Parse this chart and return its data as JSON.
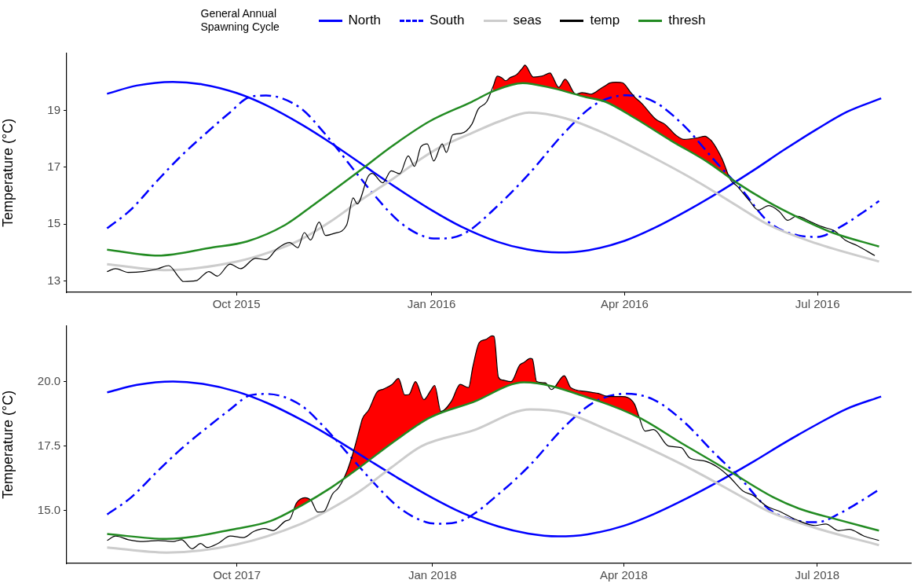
{
  "chart_data": [
    {
      "type": "line",
      "ylabel": "Temperature (°C)",
      "legend_title": "General Annual Spawning Cycle",
      "legend": "top",
      "xlim": [
        "2015-07-13",
        "2016-08-14"
      ],
      "xticks": [
        {
          "value": "2015-10-01",
          "label": "Oct 2015"
        },
        {
          "value": "2016-01-01",
          "label": "Jan 2016"
        },
        {
          "value": "2016-04-01",
          "label": "Apr 2016"
        },
        {
          "value": "2016-07-01",
          "label": "Jul 2016"
        }
      ],
      "ylim": [
        12.6,
        21.0
      ],
      "yticks": [
        13,
        15,
        17,
        19
      ],
      "series": [
        {
          "type": "area",
          "color": "#ff0000",
          "x": [
            "2016-01-30",
            "2016-02-01",
            "2016-02-03",
            "2016-02-05",
            "2016-02-07",
            "2016-02-10",
            "2016-02-13",
            "2016-02-14",
            "2016-02-18",
            "2016-02-22",
            "2016-02-26",
            "2016-02-27",
            "2016-03-01",
            "2016-03-04",
            "2016-03-09",
            "2016-03-12",
            "2016-03-14",
            "2016-03-16",
            "2016-03-21",
            "2016-03-23",
            "2016-03-25",
            "2016-03-28",
            "2016-03-31",
            "2016-04-04",
            "2016-04-06",
            "2016-04-09",
            "2016-04-16",
            "2016-04-20",
            "2016-04-23",
            "2016-04-25",
            "2016-04-29",
            "2016-05-05",
            "2016-05-09",
            "2016-05-10",
            "2016-05-12",
            "2016-05-17",
            "2016-05-21",
            "2016-05-24"
          ],
          "values": [
            19.83,
            20.2,
            20.15,
            20.04,
            20.15,
            20.25,
            20.5,
            20.59,
            20.17,
            20.2,
            20.31,
            20.2,
            19.81,
            20.09,
            19.57,
            19.62,
            19.6,
            19.57,
            19.78,
            19.87,
            19.96,
            19.99,
            19.97,
            19.62,
            19.45,
            19.25,
            18.67,
            18.51,
            18.29,
            18.14,
            17.98,
            18.03,
            18.09,
            18.05,
            17.93,
            17.29,
            16.55,
            16.34
          ]
        },
        {
          "name": "North",
          "color": "#0000ff",
          "line_style": "solid",
          "x": [
            "2015-08-01",
            "2015-08-15",
            "2015-09-01",
            "2015-09-15",
            "2015-10-01",
            "2015-10-15",
            "2015-11-01",
            "2015-11-15",
            "2015-12-01",
            "2015-12-15",
            "2016-01-01",
            "2016-01-15",
            "2016-02-01",
            "2016-02-15",
            "2016-03-01",
            "2016-03-15",
            "2016-04-01",
            "2016-04-15",
            "2016-05-01",
            "2016-05-15",
            "2016-06-01",
            "2016-06-15",
            "2016-07-01",
            "2016-07-15",
            "2016-07-31"
          ],
          "values": [
            19.58,
            19.87,
            20.0,
            19.91,
            19.61,
            19.18,
            18.49,
            17.83,
            17.01,
            16.3,
            15.49,
            14.91,
            14.38,
            14.11,
            14.0,
            14.08,
            14.41,
            14.86,
            15.49,
            16.1,
            16.9,
            17.6,
            18.35,
            18.95,
            19.42
          ]
        },
        {
          "name": "South",
          "color": "#0000ff",
          "line_style": "dashed",
          "x": [
            "2015-08-01",
            "2015-08-12",
            "2015-08-25",
            "2015-09-05",
            "2015-09-19",
            "2015-09-28",
            "2015-10-07",
            "2015-10-15",
            "2015-10-31",
            "2015-11-11",
            "2015-11-28",
            "2015-12-05",
            "2015-12-17",
            "2015-12-29",
            "2016-01-05",
            "2016-01-16",
            "2016-02-02",
            "2016-02-16",
            "2016-03-04",
            "2016-03-18",
            "2016-04-02",
            "2016-04-15",
            "2016-04-29",
            "2016-05-14",
            "2016-05-26",
            "2016-06-08",
            "2016-06-22",
            "2016-07-01",
            "2016-07-12",
            "2016-07-21",
            "2016-07-30"
          ],
          "values": [
            14.85,
            15.49,
            16.55,
            17.4,
            18.35,
            18.93,
            19.46,
            19.52,
            19.09,
            18.24,
            16.66,
            16.02,
            15.07,
            14.55,
            14.49,
            14.65,
            15.7,
            16.77,
            18.24,
            19.2,
            19.53,
            19.3,
            18.46,
            17.19,
            16.23,
            15.07,
            14.6,
            14.55,
            14.91,
            15.34,
            15.81
          ]
        },
        {
          "name": "seas",
          "color": "#cccccc",
          "line_style": "solid",
          "x": [
            "2015-08-01",
            "2015-08-29",
            "2015-10-01",
            "2015-10-17",
            "2015-10-31",
            "2015-11-14",
            "2015-11-28",
            "2015-12-13",
            "2015-12-27",
            "2016-01-05",
            "2016-01-20",
            "2016-02-02",
            "2016-02-16",
            "2016-03-04",
            "2016-03-24",
            "2016-04-13",
            "2016-05-04",
            "2016-05-25",
            "2016-06-08",
            "2016-06-30",
            "2016-07-30"
          ],
          "values": [
            13.59,
            13.38,
            13.68,
            14.02,
            14.44,
            15.07,
            15.81,
            16.55,
            17.29,
            17.7,
            18.2,
            18.61,
            18.92,
            18.72,
            18.14,
            17.4,
            16.55,
            15.6,
            14.97,
            14.33,
            13.68
          ]
        },
        {
          "name": "temp",
          "color": "#000000",
          "line_style": "solid",
          "x": [
            "2015-08-01",
            "2015-08-05",
            "2015-08-11",
            "2015-08-18",
            "2015-08-25",
            "2015-08-30",
            "2015-09-04",
            "2015-09-06",
            "2015-09-12",
            "2015-09-18",
            "2015-09-22",
            "2015-09-28",
            "2015-10-03",
            "2015-10-10",
            "2015-10-15",
            "2015-10-20",
            "2015-10-26",
            "2015-10-30",
            "2015-11-02",
            "2015-11-05",
            "2015-11-09",
            "2015-11-12",
            "2015-11-16",
            "2015-11-22",
            "2015-11-25",
            "2015-11-27",
            "2015-12-02",
            "2015-12-04",
            "2015-12-09",
            "2015-12-13",
            "2015-12-17",
            "2015-12-21",
            "2015-12-24",
            "2015-12-27",
            "2015-12-30",
            "2016-01-02",
            "2016-01-06",
            "2016-01-08",
            "2016-01-11",
            "2016-01-15",
            "2016-01-20",
            "2016-01-23",
            "2016-01-27",
            "2016-01-30",
            "2016-02-01",
            "2016-02-03",
            "2016-02-05",
            "2016-02-07",
            "2016-02-10",
            "2016-02-13",
            "2016-02-14",
            "2016-02-18",
            "2016-02-22",
            "2016-02-26",
            "2016-02-27",
            "2016-03-01",
            "2016-03-04",
            "2016-03-09",
            "2016-03-12",
            "2016-03-14",
            "2016-03-16",
            "2016-03-21",
            "2016-03-23",
            "2016-03-25",
            "2016-03-28",
            "2016-03-31",
            "2016-04-04",
            "2016-04-06",
            "2016-04-09",
            "2016-04-16",
            "2016-04-20",
            "2016-04-23",
            "2016-04-25",
            "2016-04-29",
            "2016-05-05",
            "2016-05-09",
            "2016-05-10",
            "2016-05-12",
            "2016-05-17",
            "2016-05-21",
            "2016-05-24",
            "2016-05-30",
            "2016-06-03",
            "2016-06-08",
            "2016-06-13",
            "2016-06-17",
            "2016-06-21",
            "2016-06-28",
            "2016-07-03",
            "2016-07-09",
            "2016-07-14",
            "2016-07-20",
            "2016-07-28"
          ],
          "values": [
            13.33,
            13.43,
            13.3,
            13.33,
            13.43,
            13.54,
            13.12,
            12.98,
            13.01,
            13.33,
            13.17,
            13.59,
            13.43,
            13.8,
            13.75,
            14.12,
            14.35,
            14.17,
            14.7,
            14.44,
            15.07,
            14.6,
            14.67,
            14.97,
            15.92,
            15.71,
            16.66,
            16.78,
            16.45,
            16.87,
            16.77,
            17.4,
            17.03,
            17.72,
            17.82,
            17.22,
            17.82,
            17.52,
            18.14,
            18.19,
            18.51,
            19.04,
            19.3,
            19.83,
            20.2,
            20.15,
            20.04,
            20.15,
            20.25,
            20.5,
            20.59,
            20.17,
            20.2,
            20.31,
            20.2,
            19.81,
            20.09,
            19.57,
            19.62,
            19.6,
            19.57,
            19.78,
            19.87,
            19.96,
            19.99,
            19.97,
            19.62,
            19.45,
            19.25,
            18.67,
            18.51,
            18.29,
            18.14,
            17.98,
            18.03,
            18.09,
            18.05,
            17.93,
            17.29,
            16.55,
            16.34,
            15.81,
            15.49,
            15.65,
            15.44,
            15.13,
            15.28,
            15.07,
            14.91,
            14.76,
            14.44,
            14.23,
            13.89
          ]
        },
        {
          "name": "thresh",
          "color": "#228b22",
          "line_style": "solid",
          "x": [
            "2015-08-01",
            "2015-08-25",
            "2015-09-19",
            "2015-10-06",
            "2015-10-24",
            "2015-11-07",
            "2015-11-28",
            "2015-12-13",
            "2015-12-31",
            "2016-01-20",
            "2016-01-30",
            "2016-02-13",
            "2016-02-27",
            "2016-03-14",
            "2016-03-23",
            "2016-04-06",
            "2016-04-23",
            "2016-05-10",
            "2016-05-24",
            "2016-06-07",
            "2016-06-22",
            "2016-07-08",
            "2016-07-30"
          ],
          "values": [
            14.1,
            13.89,
            14.17,
            14.39,
            14.97,
            15.71,
            16.87,
            17.72,
            18.61,
            19.3,
            19.67,
            19.96,
            19.78,
            19.46,
            19.3,
            18.72,
            17.93,
            17.19,
            16.45,
            15.81,
            15.23,
            14.7,
            14.21
          ]
        }
      ]
    },
    {
      "type": "line",
      "ylabel": "Temperature (°C)",
      "xlim": [
        "2017-07-13",
        "2018-08-14"
      ],
      "xticks": [
        {
          "value": "2017-10-01",
          "label": "Oct 2017"
        },
        {
          "value": "2018-01-01",
          "label": "Jan 2018"
        },
        {
          "value": "2018-04-01",
          "label": "Apr 2018"
        },
        {
          "value": "2018-07-01",
          "label": "Jul 2018"
        }
      ],
      "ylim": [
        12.95,
        22.15
      ],
      "yticks": [
        {
          "value": 15,
          "label": "15.0"
        },
        {
          "value": 17.5,
          "label": "17.5"
        },
        {
          "value": 20,
          "label": "20.0"
        }
      ],
      "series": [
        {
          "type": "area",
          "color": "#ff0000",
          "x": [
            "2017-10-17",
            "2017-10-18",
            "2017-10-24",
            "2017-10-26",
            "2017-10-29",
            "2017-10-31",
            "2017-11-02",
            "2017-11-05",
            "2017-11-08",
            "2017-11-11",
            "2017-11-14",
            "2017-11-15",
            "2017-11-18",
            "2017-11-22",
            "2017-11-25",
            "2017-11-28",
            "2017-11-29",
            "2017-12-02",
            "2017-12-06",
            "2017-12-09",
            "2017-12-13",
            "2017-12-16",
            "2017-12-19",
            "2017-12-21",
            "2017-12-24",
            "2017-12-28",
            "2017-12-31",
            "2018-01-02",
            "2018-01-05",
            "2018-01-10",
            "2018-01-14",
            "2018-01-18",
            "2018-01-20",
            "2018-01-23",
            "2018-01-26",
            "2018-01-29",
            "2018-01-30",
            "2018-02-01",
            "2018-02-03",
            "2018-02-07",
            "2018-02-11",
            "2018-02-13",
            "2018-02-16",
            "2018-02-17",
            "2018-02-19",
            "2018-02-23",
            "2018-02-26",
            "2018-03-04",
            "2018-03-07",
            "2018-03-14",
            "2018-03-17",
            "2018-03-20",
            "2018-03-25",
            "2018-03-31",
            "2018-04-06",
            "2018-04-08"
          ],
          "values": [
            14.24,
            14.22,
            14.6,
            14.67,
            15.29,
            15.45,
            15.5,
            15.38,
            14.94,
            14.97,
            15.47,
            15.64,
            15.9,
            16.57,
            17.33,
            18.25,
            18.55,
            18.9,
            19.6,
            19.71,
            19.89,
            20.12,
            19.48,
            19.5,
            20.0,
            19.3,
            19.63,
            19.85,
            18.84,
            19.25,
            19.89,
            19.77,
            20.58,
            21.51,
            21.63,
            21.77,
            21.75,
            20.18,
            20.06,
            20.0,
            20.64,
            20.74,
            20.9,
            20.88,
            20.0,
            19.95,
            19.69,
            20.23,
            19.77,
            19.62,
            19.58,
            19.54,
            19.42,
            19.42,
            19.13,
            18.67
          ]
        },
        {
          "color": "#0000ff",
          "line_style": "solid",
          "x": [
            "2017-08-01",
            "2017-08-15",
            "2017-09-01",
            "2017-09-15",
            "2017-10-01",
            "2017-10-15",
            "2017-11-01",
            "2017-11-15",
            "2017-12-01",
            "2017-12-15",
            "2018-01-01",
            "2018-01-15",
            "2018-02-01",
            "2018-02-15",
            "2018-03-01",
            "2018-03-15",
            "2018-04-01",
            "2018-04-15",
            "2018-05-01",
            "2018-05-15",
            "2018-06-01",
            "2018-06-15",
            "2018-07-01",
            "2018-07-15",
            "2018-07-31"
          ],
          "values": [
            19.58,
            19.87,
            20.0,
            19.91,
            19.61,
            19.18,
            18.49,
            17.83,
            17.01,
            16.3,
            15.49,
            14.91,
            14.38,
            14.11,
            14.0,
            14.08,
            14.41,
            14.86,
            15.49,
            16.1,
            16.9,
            17.6,
            18.35,
            18.95,
            19.42
          ]
        },
        {
          "color": "#0000ff",
          "line_style": "dashed",
          "x": [
            "2017-08-01",
            "2017-08-12",
            "2017-08-25",
            "2017-09-05",
            "2017-09-19",
            "2017-09-28",
            "2017-10-07",
            "2017-10-15",
            "2017-10-31",
            "2017-11-11",
            "2017-11-28",
            "2017-12-05",
            "2017-12-17",
            "2017-12-29",
            "2018-01-05",
            "2018-01-16",
            "2018-02-02",
            "2018-02-16",
            "2018-03-04",
            "2018-03-18",
            "2018-04-02",
            "2018-04-15",
            "2018-04-29",
            "2018-05-14",
            "2018-05-26",
            "2018-06-08",
            "2018-06-22",
            "2018-07-01",
            "2018-07-12",
            "2018-07-21",
            "2018-07-30"
          ],
          "values": [
            14.85,
            15.49,
            16.55,
            17.4,
            18.35,
            18.93,
            19.46,
            19.52,
            19.09,
            18.24,
            16.66,
            16.02,
            15.07,
            14.55,
            14.49,
            14.65,
            15.7,
            16.77,
            18.24,
            19.2,
            19.53,
            19.3,
            18.46,
            17.19,
            16.23,
            15.07,
            14.6,
            14.55,
            14.91,
            15.34,
            15.81
          ]
        },
        {
          "color": "#cccccc",
          "line_style": "solid",
          "x": [
            "2017-08-01",
            "2017-08-29",
            "2017-10-01",
            "2017-10-31",
            "2017-11-14",
            "2017-11-28",
            "2017-12-13",
            "2017-12-27",
            "2018-01-20",
            "2018-02-16",
            "2018-03-04",
            "2018-03-24",
            "2018-04-13",
            "2018-05-04",
            "2018-05-25",
            "2018-06-08",
            "2018-06-30",
            "2018-07-30"
          ],
          "values": [
            13.57,
            13.37,
            13.69,
            14.48,
            15.06,
            15.76,
            16.69,
            17.5,
            18.1,
            18.92,
            18.8,
            18.14,
            17.4,
            16.55,
            15.6,
            14.97,
            14.33,
            13.66
          ]
        },
        {
          "color": "#000000",
          "line_style": "solid",
          "x": [
            "2017-08-01",
            "2017-08-05",
            "2017-08-11",
            "2017-08-18",
            "2017-08-25",
            "2017-09-01",
            "2017-09-05",
            "2017-09-10",
            "2017-09-14",
            "2017-09-17",
            "2017-09-22",
            "2017-09-28",
            "2017-10-04",
            "2017-10-09",
            "2017-10-14",
            "2017-10-17",
            "2017-10-18",
            "2017-10-24",
            "2017-10-26",
            "2017-10-29",
            "2017-10-31",
            "2017-11-02",
            "2017-11-05",
            "2017-11-08",
            "2017-11-11",
            "2017-11-14",
            "2017-11-15",
            "2017-11-18",
            "2017-11-22",
            "2017-11-25",
            "2017-11-28",
            "2017-11-29",
            "2017-12-02",
            "2017-12-06",
            "2017-12-09",
            "2017-12-13",
            "2017-12-16",
            "2017-12-19",
            "2017-12-21",
            "2017-12-24",
            "2017-12-28",
            "2017-12-31",
            "2018-01-02",
            "2018-01-05",
            "2018-01-10",
            "2018-01-14",
            "2018-01-18",
            "2018-01-20",
            "2018-01-23",
            "2018-01-26",
            "2018-01-29",
            "2018-01-30",
            "2018-02-01",
            "2018-02-03",
            "2018-02-07",
            "2018-02-11",
            "2018-02-13",
            "2018-02-16",
            "2018-02-17",
            "2018-02-19",
            "2018-02-23",
            "2018-02-26",
            "2018-03-04",
            "2018-03-07",
            "2018-03-14",
            "2018-03-17",
            "2018-03-20",
            "2018-03-25",
            "2018-03-31",
            "2018-04-06",
            "2018-04-08",
            "2018-04-11",
            "2018-04-15",
            "2018-04-22",
            "2018-04-28",
            "2018-05-02",
            "2018-05-09",
            "2018-05-15",
            "2018-05-21",
            "2018-05-27",
            "2018-06-01",
            "2018-06-07",
            "2018-06-14",
            "2018-06-21",
            "2018-06-30",
            "2018-07-05",
            "2018-07-11",
            "2018-07-16",
            "2018-07-23",
            "2018-07-30"
          ],
          "values": [
            13.84,
            14.01,
            13.87,
            13.8,
            13.84,
            13.8,
            13.87,
            13.52,
            13.72,
            13.57,
            13.72,
            14.01,
            13.95,
            14.19,
            14.3,
            14.24,
            14.22,
            14.6,
            14.67,
            15.29,
            15.45,
            15.5,
            15.38,
            14.94,
            14.97,
            15.47,
            15.64,
            15.9,
            16.57,
            17.33,
            18.25,
            18.55,
            18.9,
            19.6,
            19.71,
            19.89,
            20.12,
            19.48,
            19.5,
            20.0,
            19.3,
            19.63,
            19.85,
            18.84,
            19.25,
            19.89,
            19.77,
            20.58,
            21.51,
            21.63,
            21.77,
            21.75,
            20.18,
            20.06,
            20.0,
            20.64,
            20.74,
            20.9,
            20.88,
            20.0,
            19.95,
            19.69,
            20.23,
            19.77,
            19.62,
            19.58,
            19.54,
            19.42,
            19.42,
            19.13,
            18.67,
            18.08,
            18.14,
            17.5,
            17.44,
            17.04,
            16.92,
            16.69,
            16.28,
            15.76,
            15.58,
            15.18,
            14.94,
            14.65,
            14.42,
            14.48,
            14.22,
            14.27,
            14.01,
            13.84
          ]
        },
        {
          "color": "#228b22",
          "line_style": "solid",
          "x": [
            "2017-08-01",
            "2017-08-29",
            "2017-10-01",
            "2017-10-17",
            "2017-10-31",
            "2017-11-14",
            "2017-11-28",
            "2017-12-13",
            "2017-12-31",
            "2018-01-20",
            "2018-02-13",
            "2018-03-17",
            "2018-04-08",
            "2018-04-28",
            "2018-05-22",
            "2018-06-10",
            "2018-06-23",
            "2018-07-10",
            "2018-07-30"
          ],
          "values": [
            14.09,
            13.9,
            14.3,
            14.6,
            15.18,
            15.87,
            16.69,
            17.62,
            18.61,
            19.2,
            19.97,
            19.33,
            18.61,
            17.62,
            16.46,
            15.53,
            15.06,
            14.66,
            14.22
          ]
        }
      ]
    }
  ]
}
